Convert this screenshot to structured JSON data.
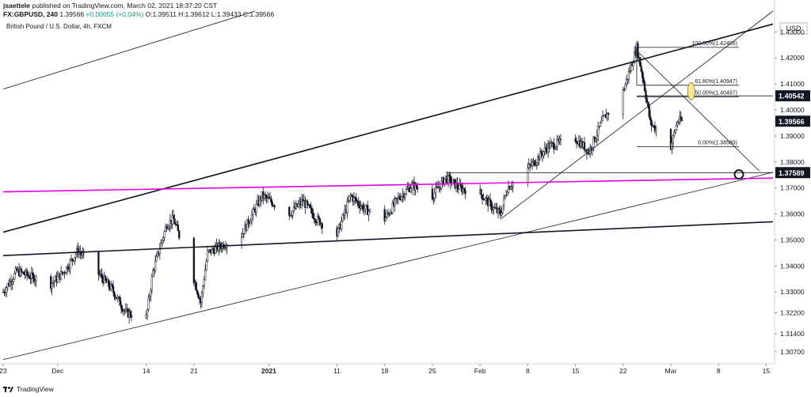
{
  "header": {
    "author": "jsaettele",
    "published": " published on TradingView.com, March 02, 2021 18:37:20 CST",
    "symbol": "FX:GBPUSD, 240",
    "last": "1.39566",
    "change": "+0.00055 (+0.04%)",
    "ohlc": {
      "o_label": "O:",
      "o": "1.39511",
      "h_label": "H:",
      "h": "1.39612",
      "l_label": "L:",
      "l": "1.39433",
      "c_label": "C:",
      "c": "1.39566"
    },
    "description": "British Pound / U.S. Dollar, 4h, FXCM"
  },
  "footer": {
    "brand": "TradingView"
  },
  "colors": {
    "magenta_line": "#e600e6",
    "highlight_ellipse": "#f7e59a",
    "price_tag": "#131722",
    "candle": "#131722"
  },
  "chart_data": {
    "type": "candlestick",
    "currency": "USD",
    "ylim": [
      1.303,
      1.438
    ],
    "y_ticks": [
      1.43,
      1.42,
      1.41,
      1.4,
      1.39,
      1.38,
      1.37,
      1.36,
      1.35,
      1.34,
      1.33,
      1.322,
      1.314,
      1.307
    ],
    "y_tick_labels": [
      "1.43000",
      "1.42000",
      "1.41000",
      "1.40000",
      "1.39000",
      "1.38000",
      "1.37000",
      "1.36000",
      "1.35000",
      "1.34000",
      "1.33000",
      "1.32200",
      "1.31400",
      "1.30700"
    ],
    "x_range": [
      "2020-11-23",
      "2021-03-16"
    ],
    "x_ticks": [
      {
        "date": "2020-11-23",
        "label": "23"
      },
      {
        "date": "2020-12-01",
        "label": "Dec"
      },
      {
        "date": "2020-12-14",
        "label": "14"
      },
      {
        "date": "2020-12-21",
        "label": "21"
      },
      {
        "date": "2021-01-01",
        "label": "2021"
      },
      {
        "date": "2021-01-11",
        "label": "11"
      },
      {
        "date": "2021-01-18",
        "label": "18"
      },
      {
        "date": "2021-01-25",
        "label": "25"
      },
      {
        "date": "2021-02-01",
        "label": "Feb"
      },
      {
        "date": "2021-02-08",
        "label": "8"
      },
      {
        "date": "2021-02-15",
        "label": "15"
      },
      {
        "date": "2021-02-22",
        "label": "22"
      },
      {
        "date": "2021-03-01",
        "label": "Mar"
      },
      {
        "date": "2021-03-08",
        "label": "8"
      },
      {
        "date": "2021-03-15",
        "label": "15"
      }
    ],
    "price_path": [
      [
        "2020-11-23",
        1.33
      ],
      [
        "2020-11-25",
        1.338
      ],
      [
        "2020-11-30",
        1.333
      ],
      [
        "2020-12-02",
        1.338
      ],
      [
        "2020-12-04",
        1.346
      ],
      [
        "2020-12-07",
        1.337
      ],
      [
        "2020-12-09",
        1.331
      ],
      [
        "2020-12-11",
        1.322
      ],
      [
        "2020-12-14",
        1.32
      ],
      [
        "2020-12-15",
        1.338
      ],
      [
        "2020-12-17",
        1.356
      ],
      [
        "2020-12-18",
        1.358
      ],
      [
        "2020-12-21",
        1.335
      ],
      [
        "2020-12-22",
        1.326
      ],
      [
        "2020-12-23",
        1.345
      ],
      [
        "2020-12-28",
        1.352
      ],
      [
        "2020-12-31",
        1.367
      ],
      [
        "2021-01-04",
        1.36
      ],
      [
        "2021-01-06",
        1.365
      ],
      [
        "2021-01-08",
        1.358
      ],
      [
        "2021-01-11",
        1.352
      ],
      [
        "2021-01-13",
        1.367
      ],
      [
        "2021-01-15",
        1.362
      ],
      [
        "2021-01-18",
        1.358
      ],
      [
        "2021-01-20",
        1.366
      ],
      [
        "2021-01-22",
        1.371
      ],
      [
        "2021-01-25",
        1.367
      ],
      [
        "2021-01-27",
        1.374
      ],
      [
        "2021-01-29",
        1.37
      ],
      [
        "2021-02-01",
        1.368
      ],
      [
        "2021-02-03",
        1.362
      ],
      [
        "2021-02-04",
        1.36
      ],
      [
        "2021-02-05",
        1.37
      ],
      [
        "2021-02-09",
        1.38
      ],
      [
        "2021-02-11",
        1.386
      ],
      [
        "2021-02-15",
        1.389
      ],
      [
        "2021-02-17",
        1.384
      ],
      [
        "2021-02-19",
        1.396
      ],
      [
        "2021-02-22",
        1.407
      ],
      [
        "2021-02-24",
        1.424
      ],
      [
        "2021-02-25",
        1.411
      ],
      [
        "2021-02-26",
        1.395
      ],
      [
        "2021-03-01",
        1.386
      ],
      [
        "2021-03-02",
        1.3957
      ]
    ],
    "trendlines": [
      {
        "from": [
          "2020-11-23",
          1.353
        ],
        "to": [
          "2021-03-16",
          1.433
        ]
      },
      {
        "from": [
          "2020-11-23",
          1.344
        ],
        "to": [
          "2021-03-16",
          1.357
        ]
      },
      {
        "from": [
          "2020-11-23",
          1.304
        ],
        "to": [
          "2021-03-16",
          1.376
        ]
      },
      {
        "from": [
          "2020-11-23",
          1.408
        ],
        "to": [
          "2020-12-30",
          1.438
        ]
      },
      {
        "from": [
          "2021-02-04",
          1.358
        ],
        "to": [
          "2021-03-16",
          1.438
        ]
      },
      {
        "from": [
          "2021-02-24",
          1.4228
        ],
        "to": [
          "2021-03-14",
          1.3765
        ]
      },
      {
        "from": [
          "2020-11-23",
          1.3685
        ],
        "to": [
          "2021-03-16",
          1.3738
        ],
        "color_key": "magenta_line"
      }
    ],
    "horizontal_segments": [
      {
        "from": "2021-01-27",
        "to": "2021-03-16",
        "y": 1.37589
      },
      {
        "from": "2021-02-24",
        "to": "2021-03-16",
        "y": 1.4054
      }
    ],
    "fib": {
      "x_from": "2021-02-24",
      "x_to": "2021-03-11",
      "levels": [
        {
          "y": 1.42405,
          "label": "100.00%(1.42405)"
        },
        {
          "y": 1.40947,
          "label": "61.80%(1.40947)"
        },
        {
          "y": 1.40497,
          "label": "50.00%(1.40497)"
        },
        {
          "y": 1.38589,
          "label": "0.00%(1.38589)"
        }
      ]
    },
    "ellipse": {
      "date": "2021-03-04",
      "y": 1.4072
    },
    "circle": {
      "date": "2021-03-11",
      "y": 1.3752
    },
    "price_tags": [
      {
        "y": 1.40542,
        "label": "1.40542"
      },
      {
        "y": 1.39566,
        "label": "1.39566"
      },
      {
        "y": 1.37589,
        "label": "1.37589"
      }
    ]
  }
}
